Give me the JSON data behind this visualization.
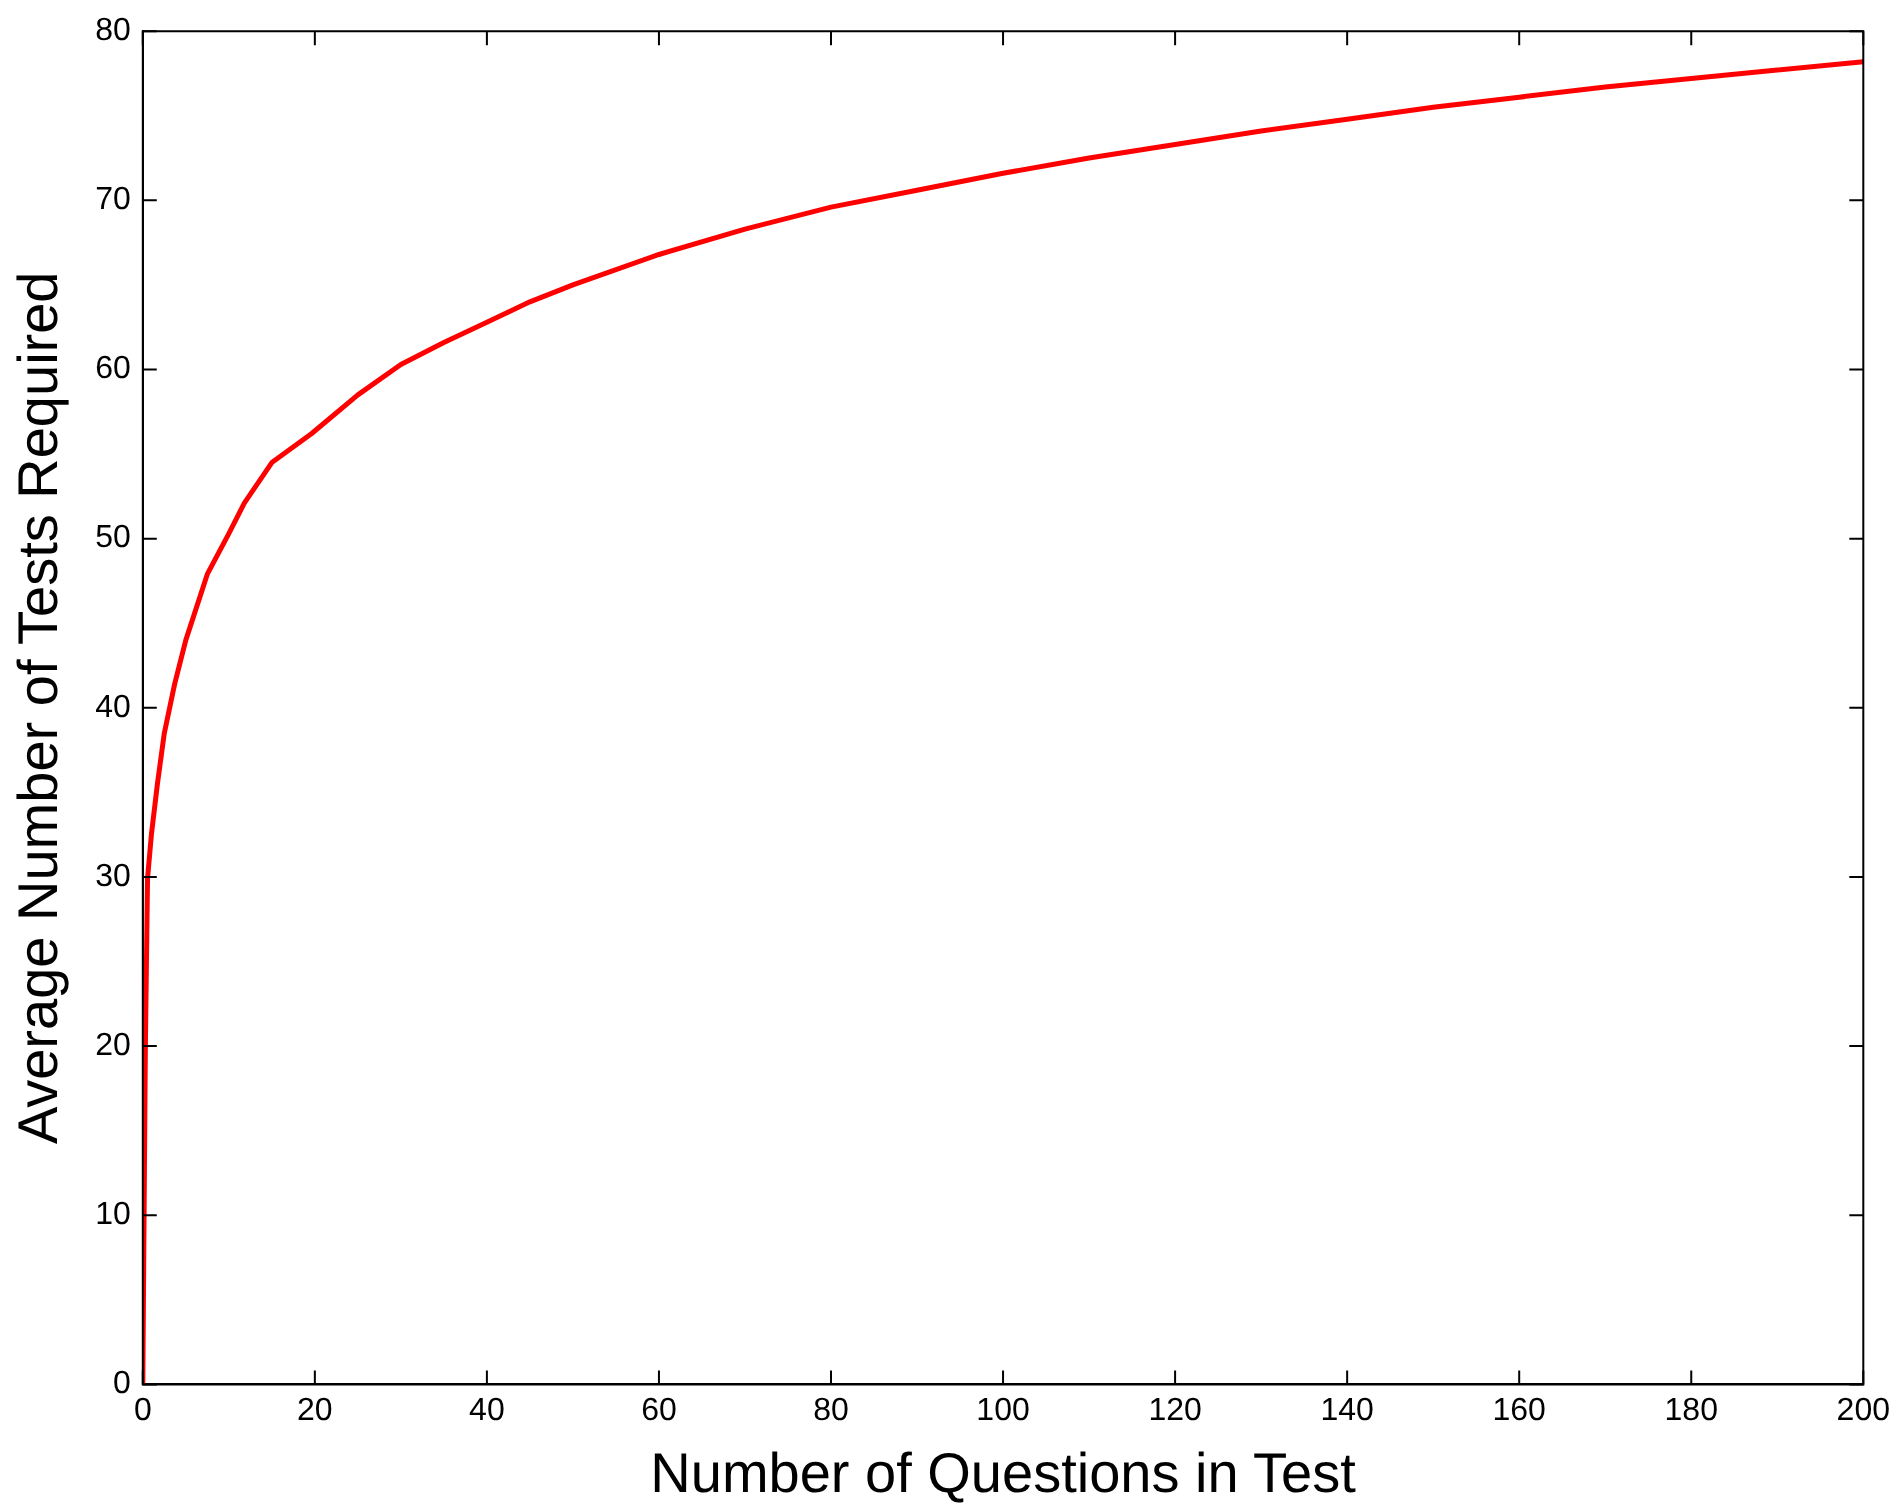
{
  "chart_data": {
    "type": "line",
    "xlabel": "Number of Questions in Test",
    "ylabel": "Average Number of Tests Required",
    "series": [
      {
        "color": "#ff0000",
        "x": [
          0,
          0.3,
          0.55,
          1,
          1.7,
          2.5,
          3.7,
          5,
          7.5,
          10,
          11.8,
          15,
          19.6,
          25,
          30,
          35,
          40,
          45,
          50,
          60,
          70,
          80,
          90,
          100,
          110,
          120,
          130,
          140,
          150,
          160,
          170,
          180,
          190,
          200
        ],
        "values": [
          0,
          20,
          29.9,
          32.5,
          35.5,
          38.5,
          41.4,
          44,
          47.9,
          50.3,
          52.1,
          54.5,
          56.2,
          58.5,
          60.3,
          61.6,
          62.8,
          64,
          65,
          66.8,
          68.3,
          69.6,
          70.6,
          71.6,
          72.5,
          73.3,
          74.1,
          74.8,
          75.5,
          76.1,
          76.7,
          77.2,
          77.7,
          78.2
        ]
      }
    ],
    "xlim": [
      0,
      200
    ],
    "xticks": [
      0,
      20,
      40,
      60,
      80,
      100,
      120,
      140,
      160,
      180,
      200
    ],
    "ylim": [
      0,
      80
    ],
    "yticks": [
      0,
      10,
      20,
      30,
      40,
      50,
      60,
      70,
      80
    ],
    "grid": false,
    "legend": false,
    "marker": "none",
    "line_style": "solid"
  }
}
